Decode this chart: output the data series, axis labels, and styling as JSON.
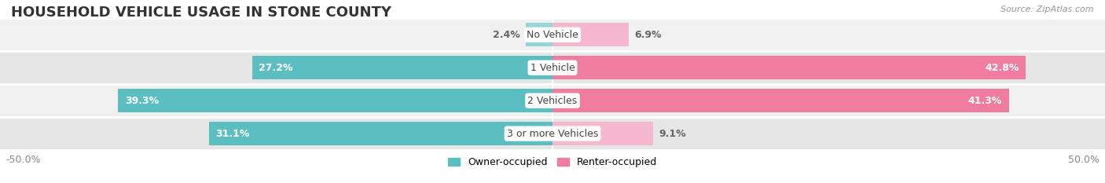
{
  "title": "HOUSEHOLD VEHICLE USAGE IN STONE COUNTY",
  "source": "Source: ZipAtlas.com",
  "categories": [
    "No Vehicle",
    "1 Vehicle",
    "2 Vehicles",
    "3 or more Vehicles"
  ],
  "owner_values": [
    2.4,
    27.2,
    39.3,
    31.1
  ],
  "renter_values": [
    6.9,
    42.8,
    41.3,
    9.1
  ],
  "owner_color": "#5bbfc2",
  "renter_color": "#f07ca0",
  "owner_light_color": "#96d5d7",
  "renter_light_color": "#f5b8ce",
  "row_bg_colors": [
    "#f0f0f0",
    "#e6e6e6",
    "#f0f0f0",
    "#e6e6e6"
  ],
  "xlim": [
    -50,
    50
  ],
  "legend_owner": "Owner-occupied",
  "legend_renter": "Renter-occupied",
  "title_fontsize": 13,
  "label_fontsize": 9,
  "category_fontsize": 9,
  "tick_fontsize": 9,
  "bar_height": 0.72
}
